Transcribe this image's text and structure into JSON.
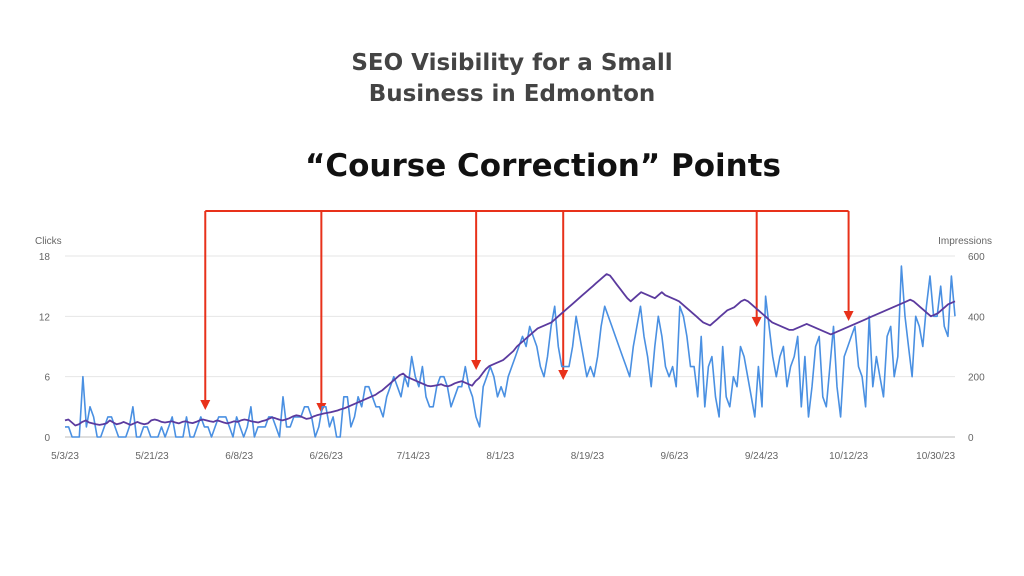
{
  "title_line1": "SEO Visibility for a Small",
  "title_line2": "Business in Edmonton",
  "subtitle": "“Course Correction” Points",
  "colors": {
    "clicks": "#4a90e2",
    "impressions": "#5b3a9e",
    "arrows": "#e8311a",
    "grid": "#e6e6e6",
    "axis_text": "#666666"
  },
  "chart_data": {
    "type": "line",
    "title": "",
    "y_left_label": "Clicks",
    "y_right_label": "Impressions",
    "y_left_ticks": [
      0,
      6,
      12,
      18
    ],
    "y_right_ticks": [
      0,
      200,
      400,
      600
    ],
    "ylim_left": [
      0,
      18
    ],
    "ylim_right": [
      0,
      600
    ],
    "x_tick_labels": [
      "5/3/23",
      "5/21/23",
      "6/8/23",
      "6/26/23",
      "7/14/23",
      "8/1/23",
      "8/19/23",
      "9/6/23",
      "9/24/23",
      "10/12/23",
      "10/30/23"
    ],
    "x_start": "5/3/23",
    "x_end": "11/3/23",
    "series": [
      {
        "name": "Clicks",
        "axis": "left",
        "values": [
          1,
          1,
          0,
          0,
          0,
          6,
          1,
          3,
          2,
          0,
          0,
          1,
          2,
          2,
          1,
          0,
          0,
          0,
          1,
          3,
          0,
          0,
          1,
          1,
          0,
          0,
          0,
          1,
          0,
          1,
          2,
          0,
          0,
          0,
          2,
          0,
          0,
          1,
          2,
          1,
          1,
          0,
          1,
          2,
          2,
          2,
          1,
          0,
          2,
          1,
          0,
          1,
          3,
          0,
          1,
          1,
          1,
          2,
          2,
          1,
          0,
          4,
          1,
          1,
          2,
          2,
          2,
          3,
          3,
          2,
          0,
          1,
          3,
          3,
          1,
          2,
          0,
          0,
          4,
          4,
          1,
          2,
          4,
          3,
          5,
          5,
          4,
          3,
          3,
          2,
          4,
          5,
          6,
          5,
          4,
          6,
          5,
          8,
          6,
          5,
          7,
          4,
          3,
          3,
          5,
          6,
          6,
          5,
          3,
          4,
          5,
          5,
          7,
          5,
          4,
          2,
          1,
          5,
          6,
          7,
          6,
          4,
          5,
          4,
          6,
          7,
          8,
          9,
          10,
          9,
          11,
          10,
          9,
          7,
          6,
          8,
          11,
          13,
          9,
          7,
          7,
          7,
          9,
          12,
          10,
          8,
          6,
          7,
          6,
          8,
          11,
          13,
          12,
          11,
          10,
          9,
          8,
          7,
          6,
          9,
          11,
          13,
          10,
          8,
          5,
          9,
          12,
          10,
          7,
          6,
          7,
          5,
          13,
          12,
          10,
          7,
          7,
          4,
          10,
          3,
          7,
          8,
          4,
          2,
          9,
          4,
          3,
          6,
          5,
          9,
          8,
          6,
          4,
          2,
          7,
          3,
          14,
          11,
          8,
          6,
          8,
          9,
          5,
          7,
          8,
          10,
          3,
          8,
          2,
          5,
          9,
          10,
          4,
          3,
          7,
          11,
          5,
          2,
          8,
          9,
          10,
          11,
          7,
          6,
          3,
          12,
          5,
          8,
          6,
          4,
          10,
          11,
          6,
          8,
          17,
          12,
          9,
          6,
          12,
          11,
          9,
          13,
          16,
          12,
          12,
          15,
          11,
          10,
          16,
          12
        ]
      },
      {
        "name": "Impressions",
        "axis": "right",
        "values": [
          55,
          58,
          48,
          38,
          42,
          50,
          55,
          48,
          45,
          42,
          40,
          42,
          45,
          55,
          48,
          42,
          45,
          50,
          45,
          40,
          45,
          50,
          45,
          42,
          45,
          55,
          58,
          55,
          50,
          48,
          50,
          52,
          48,
          45,
          50,
          52,
          48,
          46,
          50,
          55,
          58,
          55,
          52,
          50,
          55,
          52,
          48,
          45,
          48,
          52,
          50,
          55,
          58,
          56,
          52,
          50,
          48,
          52,
          55,
          60,
          65,
          62,
          58,
          55,
          58,
          62,
          68,
          72,
          70,
          65,
          60,
          62,
          68,
          72,
          75,
          78,
          80,
          82,
          85,
          88,
          92,
          95,
          100,
          105,
          110,
          115,
          120,
          125,
          130,
          135,
          140,
          148,
          155,
          165,
          175,
          185,
          195,
          205,
          210,
          200,
          195,
          190,
          185,
          180,
          175,
          170,
          168,
          170,
          172,
          175,
          170,
          168,
          172,
          178,
          182,
          185,
          180,
          175,
          170,
          185,
          195,
          210,
          225,
          235,
          240,
          245,
          250,
          255,
          265,
          275,
          285,
          300,
          310,
          320,
          330,
          340,
          350,
          360,
          365,
          370,
          375,
          380,
          390,
          400,
          410,
          420,
          430,
          440,
          450,
          460,
          470,
          480,
          490,
          500,
          510,
          520,
          530,
          540,
          535,
          520,
          505,
          490,
          475,
          460,
          450,
          460,
          470,
          480,
          475,
          470,
          465,
          460,
          470,
          480,
          470,
          465,
          460,
          455,
          450,
          440,
          430,
          420,
          410,
          400,
          390,
          380,
          375,
          370,
          380,
          390,
          400,
          410,
          420,
          425,
          430,
          440,
          450,
          455,
          450,
          440,
          430,
          420,
          410,
          400,
          390,
          380,
          375,
          370,
          365,
          360,
          355,
          355,
          360,
          365,
          370,
          375,
          370,
          365,
          360,
          355,
          350,
          345,
          340,
          345,
          350,
          355,
          360,
          365,
          370,
          375,
          380,
          385,
          390,
          395,
          400,
          405,
          410,
          415,
          420,
          425,
          430,
          435,
          440,
          445,
          450,
          455,
          450,
          440,
          430,
          420,
          410,
          400,
          405,
          410,
          420,
          430,
          440,
          445,
          450
        ]
      }
    ],
    "annotations": {
      "type": "course-correction-arrows",
      "x_dates": [
        "6/1/23",
        "6/25/23",
        "7/27/23",
        "8/14/23",
        "9/23/23",
        "10/12/23"
      ]
    }
  }
}
